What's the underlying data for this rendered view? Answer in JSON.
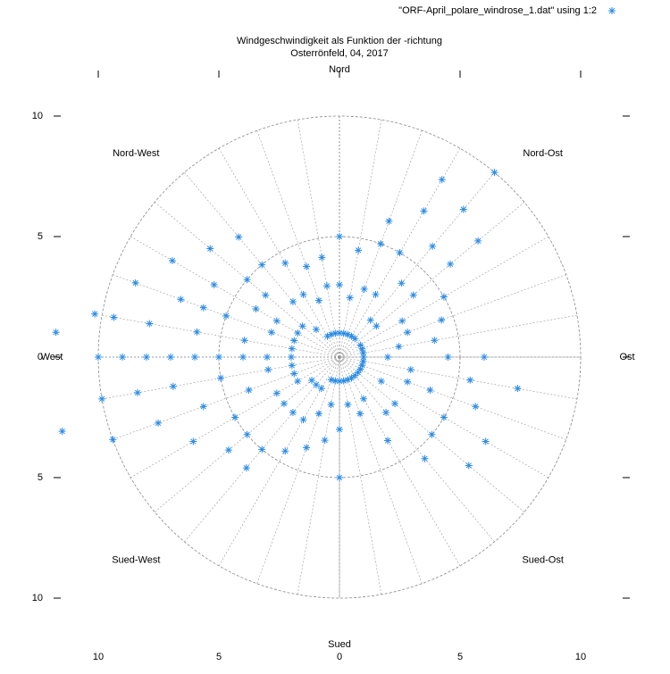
{
  "chart_data": {
    "type": "polar_scatter",
    "title": "Windgeschwindigkeit als Funktion der -richtung",
    "subtitle": "Osterrönfeld, 04, 2017",
    "direction_labels": [
      "Nord",
      "Nord-Ost",
      "Ost",
      "Sued-Ost",
      "Sued",
      "Sued-West",
      "West",
      "Nord-West"
    ],
    "xlim": [
      -10,
      10
    ],
    "ylim": [
      -10,
      10
    ],
    "xticks": [
      {
        "value": -10,
        "label": "10"
      },
      {
        "value": -5,
        "label": "5"
      },
      0,
      5,
      10
    ],
    "yticks": [
      {
        "value": -10,
        "label": "10"
      },
      {
        "value": -5,
        "label": "5"
      },
      0,
      5,
      10
    ],
    "rgrid": [
      5,
      10
    ],
    "polar_grid_step": 10,
    "legend": "top-right",
    "series": [
      {
        "name": "\"ORF-April_polare_windrose_1.dat\" using 1:2",
        "color": "#2b8ce6",
        "theta": [
          270,
          270,
          270,
          270,
          270,
          270,
          270,
          270,
          270,
          280,
          280,
          280,
          280,
          280,
          280,
          260,
          260,
          260,
          260,
          260,
          260,
          290,
          290,
          290,
          290,
          290,
          290,
          250,
          250,
          250,
          250,
          250,
          300,
          300,
          300,
          300,
          300,
          240,
          240,
          240,
          240,
          310,
          310,
          310,
          310,
          320,
          320,
          320,
          320,
          230,
          230,
          230,
          230,
          330,
          330,
          330,
          340,
          340,
          340,
          350,
          350,
          350,
          0,
          0,
          0,
          10,
          10,
          10,
          20,
          20,
          20,
          20,
          30,
          30,
          30,
          30,
          30,
          40,
          40,
          40,
          40,
          40,
          40,
          50,
          50,
          50,
          50,
          60,
          60,
          60,
          70,
          70,
          70,
          80,
          80,
          80,
          90,
          90,
          90,
          90,
          100,
          100,
          100,
          100,
          110,
          110,
          110,
          110,
          120,
          120,
          120,
          120,
          130,
          130,
          130,
          130,
          140,
          140,
          140,
          150,
          150,
          150,
          160,
          160,
          170,
          170,
          180,
          180,
          180,
          190,
          190,
          190,
          200,
          200,
          200,
          210,
          210,
          210,
          220,
          220,
          220,
          220,
          275,
          255
        ],
        "values": [
          2,
          3,
          4,
          5,
          6,
          7,
          8,
          9,
          10,
          2,
          4,
          6,
          8,
          9.5,
          10.3,
          2,
          3,
          5,
          7,
          8.5,
          10,
          2,
          3,
          5,
          6,
          7,
          9,
          2,
          4,
          6,
          8,
          10,
          2,
          3,
          4,
          6,
          8,
          2,
          3,
          5,
          7,
          2,
          4,
          5,
          7,
          1.5,
          3,
          5,
          6.5,
          1.5,
          3,
          5,
          6,
          1,
          3,
          4.5,
          1,
          2.5,
          4,
          1,
          3,
          4.2,
          1,
          3,
          5,
          1,
          2.5,
          4.5,
          1,
          3,
          5,
          6,
          1,
          3,
          5,
          7,
          8.5,
          1,
          2,
          4,
          6,
          8,
          10,
          2,
          4,
          6,
          7.5,
          1,
          3,
          5,
          1,
          3,
          4.5,
          1,
          2.5,
          4,
          1,
          2,
          4.5,
          6,
          1,
          3,
          5.5,
          7.5,
          1,
          3,
          4,
          6,
          1,
          2,
          5,
          7,
          1,
          3,
          5,
          7,
          1,
          3,
          5.5,
          1,
          2,
          4,
          1,
          2.5,
          1,
          2,
          1,
          3,
          5,
          1,
          2,
          3.5,
          1,
          2.5,
          4,
          1.5,
          3,
          4.5,
          1.5,
          3,
          5,
          6,
          11.8,
          11.9
        ]
      }
    ]
  }
}
